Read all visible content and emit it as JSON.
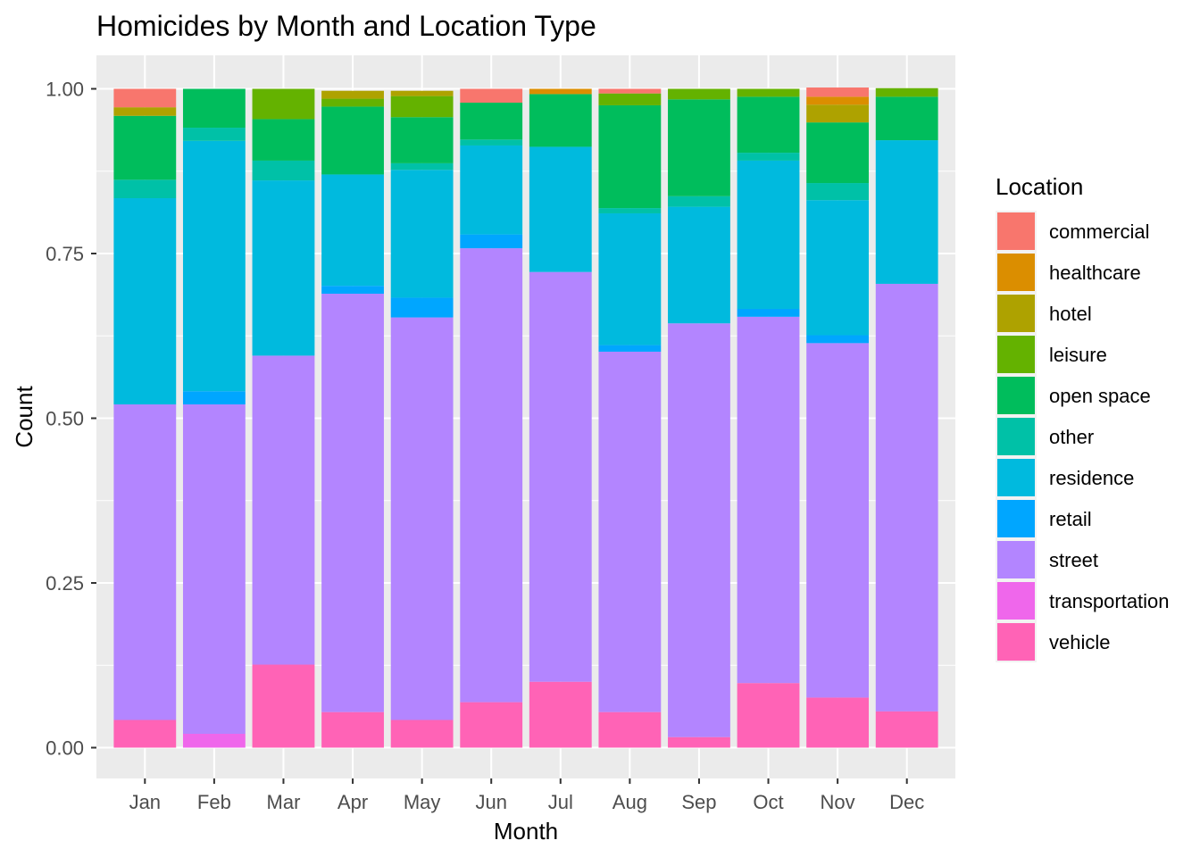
{
  "chart_data": {
    "type": "bar",
    "stacked": true,
    "position": "fill",
    "title": "Homicides by Month and Location Type",
    "xlabel": "Month",
    "ylabel": "Count",
    "ylim": [
      0,
      1
    ],
    "y_ticks": [
      "0.00",
      "0.25",
      "0.50",
      "0.75",
      "1.00"
    ],
    "grid": true,
    "legend": {
      "title": "Location",
      "placement": "right"
    },
    "categories": [
      "Jan",
      "Feb",
      "Mar",
      "Apr",
      "May",
      "Jun",
      "Jul",
      "Aug",
      "Sep",
      "Oct",
      "Nov",
      "Dec"
    ],
    "series": [
      {
        "name": "commercial",
        "color": "#F8766D",
        "values": [
          0.028,
          0.0,
          0.0,
          0.0,
          0.0,
          0.021,
          0.0,
          0.007,
          0.0,
          0.0,
          0.014,
          0.0
        ]
      },
      {
        "name": "healthcare",
        "color": "#DB8E00",
        "values": [
          0.0,
          0.0,
          0.0,
          0.0,
          0.0,
          0.0,
          0.008,
          0.0,
          0.0,
          0.0,
          0.012,
          0.0
        ]
      },
      {
        "name": "hotel",
        "color": "#AEA200",
        "values": [
          0.013,
          0.0,
          0.0,
          0.012,
          0.008,
          0.0,
          0.0,
          0.0,
          0.0,
          0.0,
          0.027,
          0.0
        ]
      },
      {
        "name": "leisure",
        "color": "#64B200",
        "values": [
          0.0,
          0.0,
          0.046,
          0.012,
          0.032,
          0.0,
          0.0,
          0.018,
          0.016,
          0.012,
          0.0,
          0.013
        ]
      },
      {
        "name": "open space",
        "color": "#00BD5C",
        "values": [
          0.097,
          0.059,
          0.063,
          0.103,
          0.07,
          0.056,
          0.08,
          0.156,
          0.147,
          0.085,
          0.092,
          0.066
        ]
      },
      {
        "name": "other",
        "color": "#00C1A7",
        "values": [
          0.028,
          0.02,
          0.03,
          0.0,
          0.01,
          0.009,
          0.0,
          0.008,
          0.016,
          0.012,
          0.026,
          0.0
        ]
      },
      {
        "name": "residence",
        "color": "#00BADE",
        "values": [
          0.313,
          0.38,
          0.266,
          0.169,
          0.194,
          0.135,
          0.19,
          0.2,
          0.177,
          0.225,
          0.205,
          0.218
        ]
      },
      {
        "name": "retail",
        "color": "#00A6FF",
        "values": [
          0.0,
          0.02,
          0.0,
          0.012,
          0.03,
          0.021,
          0.0,
          0.01,
          0.0,
          0.012,
          0.012,
          0.0
        ]
      },
      {
        "name": "street",
        "color": "#B385FF",
        "values": [
          0.479,
          0.5,
          0.469,
          0.635,
          0.611,
          0.689,
          0.622,
          0.547,
          0.628,
          0.556,
          0.538,
          0.649
        ]
      },
      {
        "name": "transportation",
        "color": "#EF67EB",
        "values": [
          0.0,
          0.021,
          0.0,
          0.0,
          0.0,
          0.0,
          0.0,
          0.0,
          0.0,
          0.0,
          0.0,
          0.0
        ]
      },
      {
        "name": "vehicle",
        "color": "#FF63B6",
        "values": [
          0.042,
          0.0,
          0.126,
          0.054,
          0.042,
          0.069,
          0.1,
          0.054,
          0.016,
          0.098,
          0.076,
          0.055
        ]
      }
    ]
  }
}
